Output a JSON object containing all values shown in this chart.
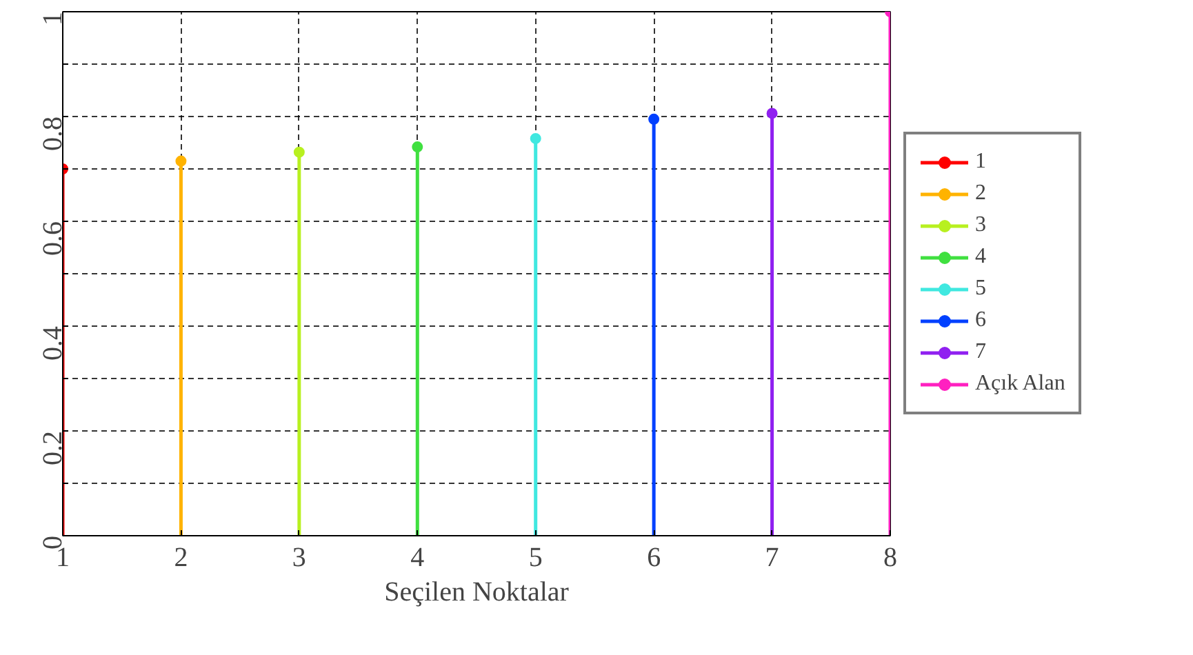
{
  "chart_data": {
    "type": "lollipop",
    "xlabel": "Seçilen Noktalar",
    "xlim": [
      1,
      8
    ],
    "xticks": [
      1,
      2,
      3,
      4,
      5,
      6,
      7,
      8
    ],
    "ylim": [
      0,
      1
    ],
    "yticks": [
      0,
      {
        "value": 0.1,
        "label": null
      },
      0.2,
      {
        "value": 0.3,
        "label": null
      },
      0.4,
      {
        "value": 0.5,
        "label": null
      },
      0.6,
      {
        "value": 0.7,
        "label": null
      },
      0.8,
      {
        "value": 0.9,
        "label": null
      },
      1
    ],
    "grid": true,
    "legend": "right",
    "marker": "circle",
    "line_style": "solid",
    "series": [
      {
        "name": "1",
        "color": "#ff0000",
        "x": [
          1
        ],
        "values": [
          0.7
        ]
      },
      {
        "name": "2",
        "color": "#ffb300",
        "x": [
          2
        ],
        "values": [
          0.715
        ]
      },
      {
        "name": "3",
        "color": "#b8f020",
        "x": [
          3
        ],
        "values": [
          0.732
        ]
      },
      {
        "name": "4",
        "color": "#40e040",
        "x": [
          4
        ],
        "values": [
          0.742
        ]
      },
      {
        "name": "5",
        "color": "#40e8e0",
        "x": [
          5
        ],
        "values": [
          0.758
        ]
      },
      {
        "name": "6",
        "color": "#0040ff",
        "x": [
          6
        ],
        "values": [
          0.795
        ]
      },
      {
        "name": "7",
        "color": "#9020f0",
        "x": [
          7
        ],
        "values": [
          0.806
        ]
      },
      {
        "name": "Açık Alan",
        "color": "#ff20c0",
        "x": [
          8
        ],
        "values": [
          1.0
        ]
      }
    ]
  }
}
